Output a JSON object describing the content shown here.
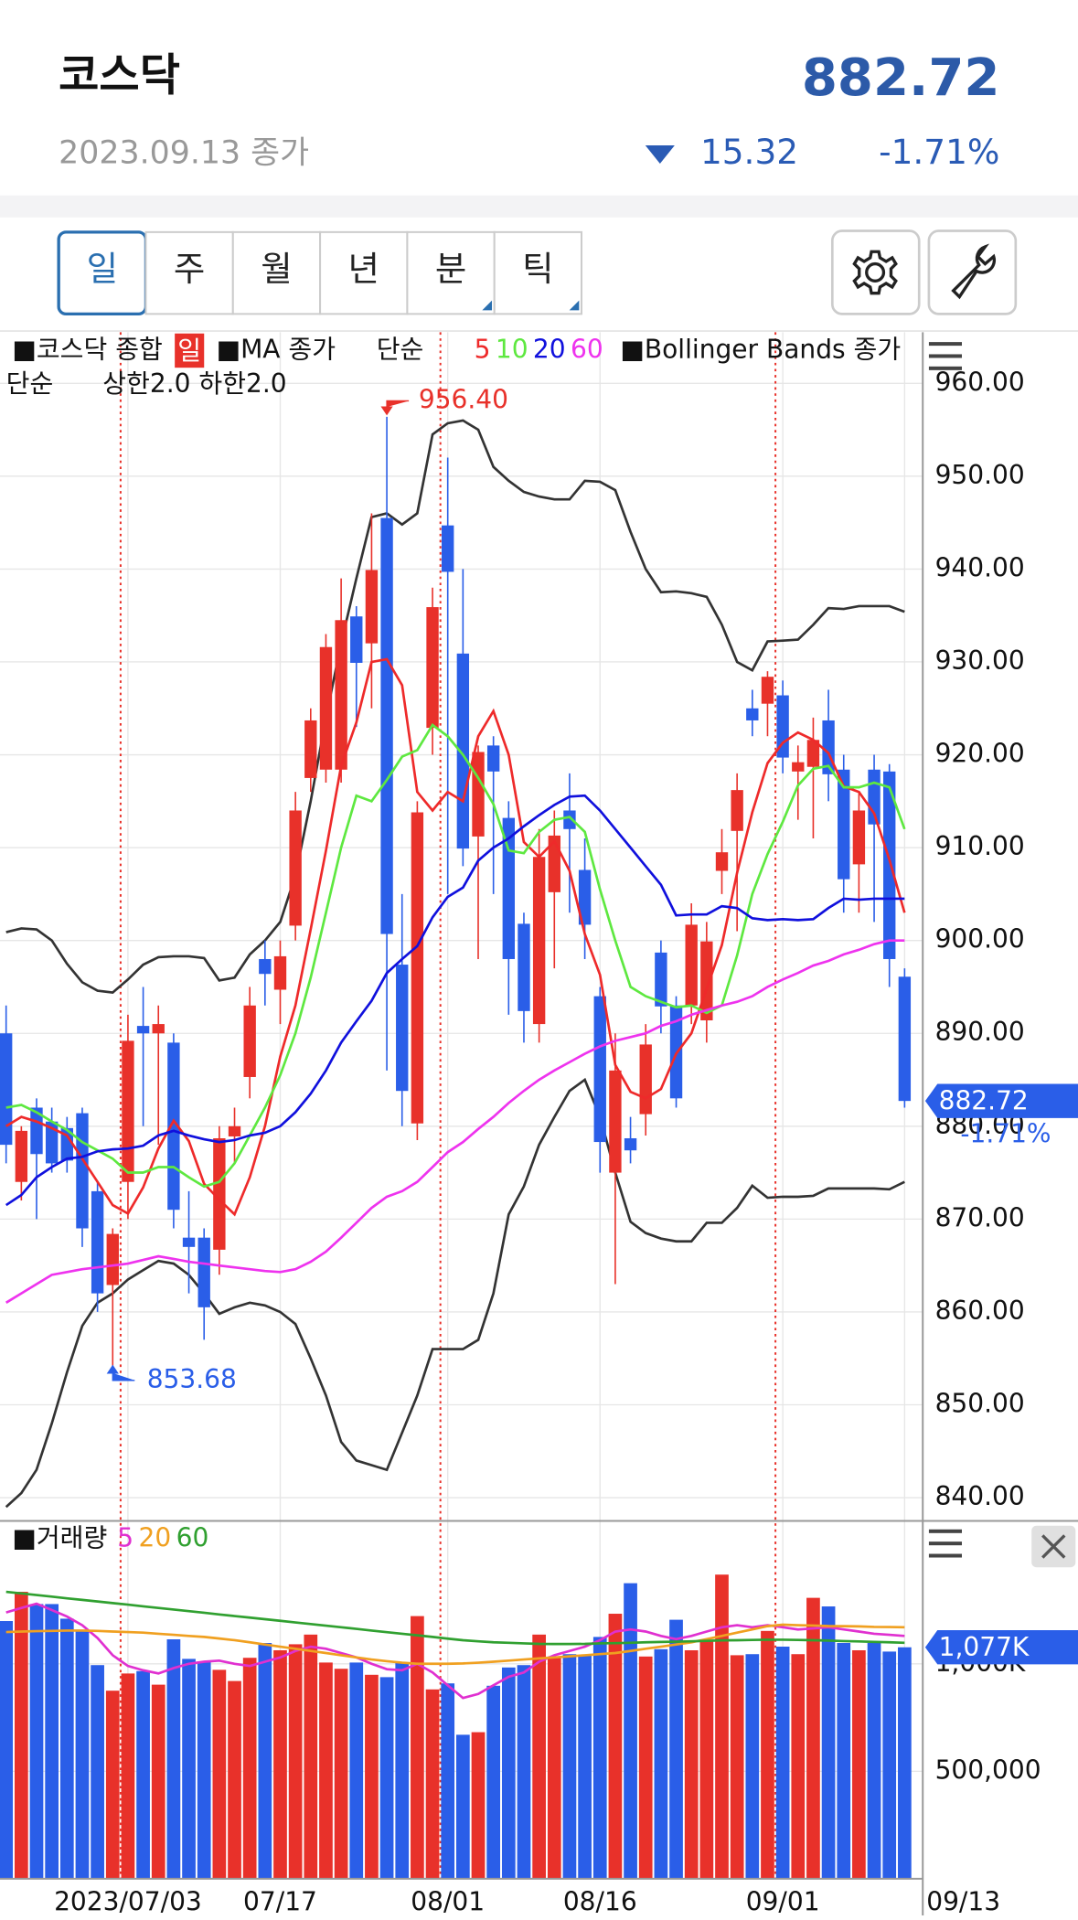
{
  "header": {
    "title": "코스닥",
    "price": "882.72",
    "date": "2023.09.13 종가",
    "change": "15.32",
    "change_pct": "-1.71%"
  },
  "tabs": [
    "일",
    "주",
    "월",
    "년",
    "분",
    "틱"
  ],
  "chart_data": [
    {
      "type": "candlestick",
      "legend": {
        "main": "■코스닥 종합",
        "period": "일",
        "ma": "■MA 종가",
        "ma_type": "단순",
        "bb": "■Bollinger Bands 종가",
        "bb_type": "단순",
        "bb_params": "상한2.0 하한2.0"
      },
      "up_color": "#e8312a",
      "down_color": "#2a5ee8",
      "categories": [
        null,
        null,
        null,
        null,
        null,
        null,
        null,
        null,
        "2023/07/03",
        null,
        null,
        null,
        null,
        null,
        null,
        null,
        null,
        null,
        "07/17",
        null,
        null,
        null,
        null,
        null,
        null,
        null,
        null,
        null,
        null,
        "08/01",
        null,
        null,
        null,
        null,
        null,
        null,
        null,
        null,
        null,
        "08/16",
        null,
        null,
        null,
        null,
        null,
        null,
        null,
        null,
        null,
        null,
        null,
        "09/01",
        null,
        null,
        null,
        null,
        null,
        null,
        null,
        "09/13"
      ],
      "open": [
        890,
        874,
        882,
        880.5,
        879.8,
        881.4,
        873,
        862.9,
        874,
        890.8,
        890,
        889,
        868,
        868,
        866.7,
        878.9,
        885.3,
        898,
        894.7,
        901.6,
        917.5,
        918.4,
        918.4,
        934.9,
        932,
        945.5,
        897.4,
        880.3,
        922.9,
        944.7,
        930.9,
        911.2,
        921,
        913.2,
        901.8,
        891,
        905.2,
        914,
        907.6,
        894,
        875,
        878.7,
        881.3,
        898.7,
        893,
        893,
        891.4,
        907.5,
        911.8,
        925,
        925.5,
        926.4,
        918.2,
        918.7,
        923.7,
        918.4,
        908.2,
        918.4,
        918.2,
        896.1
      ],
      "high": [
        893,
        880,
        883,
        882,
        881,
        882,
        874,
        869,
        892,
        895,
        893,
        890,
        873,
        869,
        880,
        882,
        895,
        900,
        900,
        916,
        925,
        933,
        939,
        936,
        946,
        956.4,
        905,
        915,
        938,
        952,
        940,
        921,
        922,
        915,
        903,
        912,
        914,
        918,
        911,
        895,
        890,
        881,
        891,
        900,
        894,
        904,
        902,
        912,
        918,
        927,
        929,
        928,
        921,
        924,
        927,
        920,
        916,
        920,
        919,
        897
      ],
      "low": [
        876,
        872,
        870,
        875,
        875,
        867,
        860,
        853.68,
        870,
        880,
        878,
        869,
        862,
        857,
        864,
        876,
        883,
        893,
        891,
        900,
        916,
        917,
        917,
        923,
        925,
        886,
        880,
        878.5,
        920,
        905,
        908,
        898,
        905,
        892,
        889,
        889,
        897,
        903,
        898,
        875,
        863,
        876,
        879,
        890,
        882,
        891,
        889,
        905,
        901,
        922,
        922,
        918,
        913,
        911,
        915,
        903,
        903,
        902,
        895,
        882
      ],
      "close": [
        878,
        879.5,
        877,
        876,
        876.3,
        869,
        862,
        868.4,
        889.2,
        890,
        891,
        871,
        867,
        860.5,
        878.7,
        880,
        893,
        896.4,
        898.3,
        914,
        923.7,
        931.6,
        934.5,
        929.9,
        939.9,
        900.7,
        883.8,
        913.8,
        935.9,
        939.7,
        909.9,
        920.3,
        918.2,
        898,
        892.4,
        909,
        911.3,
        912,
        901.7,
        878.3,
        886,
        877.4,
        888.8,
        892.9,
        883,
        901.7,
        899.9,
        909.5,
        916.2,
        923.7,
        928.4,
        919.7,
        919.2,
        921.6,
        917.9,
        906.6,
        914,
        912.5,
        898,
        882.72
      ],
      "series": [
        {
          "name": "5",
          "color": "#ee2a2a",
          "values": [
            880,
            881,
            880.5,
            879.8,
            879,
            876.5,
            874,
            871.5,
            870.6,
            873.4,
            877.6,
            880.6,
            878.4,
            873.8,
            872.1,
            870.5,
            874.5,
            880,
            887.5,
            893,
            901.2,
            909.7,
            918.8,
            923.5,
            930,
            930.3,
            927.5,
            916,
            914,
            916,
            915,
            922,
            924.7,
            920,
            910.6,
            909,
            910.7,
            907.5,
            900.7,
            896.3,
            886.6,
            883.7,
            883,
            884,
            887.8,
            890,
            894.8,
            899.5,
            907.3,
            913.8,
            919.1,
            921.3,
            922.4,
            921.6,
            920.2,
            916.6,
            916,
            913.7,
            908.7,
            903
          ]
        },
        {
          "name": "10",
          "color": "#5ee840",
          "values": [
            882,
            882.3,
            881.5,
            880.5,
            879.6,
            878.3,
            877.4,
            876.5,
            875,
            875,
            875.6,
            875.6,
            874.5,
            873.5,
            874,
            876,
            879,
            882,
            885.5,
            890,
            896,
            903,
            910,
            915.6,
            915,
            917.3,
            919.8,
            920.5,
            923.2,
            922,
            920,
            917.5,
            914.7,
            909.7,
            909.4,
            911.7,
            913,
            913.3,
            911.7,
            905.5,
            900,
            895,
            894,
            893.4,
            892.8,
            893,
            892.2,
            893,
            898.4,
            905,
            909.3,
            912.8,
            916.7,
            918.5,
            918.8,
            916.5,
            916.5,
            917,
            916.5,
            912
          ]
        },
        {
          "name": "20",
          "color": "#1010dd",
          "values": [
            871.5,
            872.6,
            874.5,
            875.6,
            876.5,
            876.7,
            877.3,
            877.5,
            877.6,
            877.9,
            879,
            879.5,
            879,
            878.6,
            878.3,
            878.5,
            879,
            879.3,
            880,
            881.5,
            883.5,
            886,
            889,
            891.3,
            893.5,
            896.5,
            898,
            899.4,
            902.5,
            904.7,
            905.7,
            908.6,
            910,
            911,
            912.3,
            913.5,
            914.6,
            915.5,
            915.6,
            914,
            912,
            910,
            908,
            906,
            902.7,
            902.8,
            902.8,
            903.7,
            903.5,
            902.4,
            902.2,
            902.3,
            902.2,
            902.3,
            903.5,
            904.5,
            904.4,
            904.5,
            904.5,
            904.5
          ]
        },
        {
          "name": "60",
          "color": "#ee33ee",
          "values": [
            861,
            862,
            863,
            864,
            864.3,
            864.6,
            864.8,
            865,
            865.2,
            865.6,
            866,
            865.7,
            865.4,
            865.2,
            865,
            864.8,
            864.6,
            864.4,
            864.3,
            864.6,
            865.4,
            866.5,
            868,
            869.6,
            871.2,
            872.4,
            873,
            874,
            875.6,
            877.2,
            878.3,
            879.7,
            881,
            882.5,
            883.8,
            885,
            886,
            886.9,
            887.8,
            888.6,
            889.2,
            889.6,
            890,
            890.8,
            891.3,
            892,
            892.5,
            893,
            893.4,
            894,
            895,
            895.8,
            896.5,
            897.3,
            897.8,
            898.5,
            899,
            899.6,
            900,
            900
          ]
        }
      ],
      "bands": [
        {
          "color": "#333333",
          "values": [
            900.9,
            901.3,
            901.2,
            900,
            897.5,
            895.5,
            894.6,
            894.4,
            895.8,
            897.4,
            898.2,
            898.3,
            898.3,
            898.1,
            895.7,
            896,
            898.5,
            900,
            902,
            907,
            915,
            924,
            932,
            939,
            945.6,
            946,
            944.8,
            946,
            954.5,
            955.7,
            956,
            955,
            951,
            949.5,
            948.3,
            947.8,
            947.5,
            947.5,
            949.5,
            949.4,
            948.5,
            944,
            940,
            937.5,
            937.6,
            937.4,
            937,
            934,
            930,
            929.1,
            932.2,
            932.3,
            932.4,
            934,
            935.8,
            935.7,
            936,
            936,
            936,
            935.4
          ]
        },
        {
          "color": "#333333",
          "values": [
            839,
            840.5,
            843,
            848,
            853.5,
            858.5,
            861,
            862,
            863.5,
            864.5,
            865.5,
            865.2,
            864,
            862,
            859.8,
            860.5,
            861,
            860.7,
            860,
            858.7,
            855,
            851,
            846,
            844,
            843.5,
            843,
            847,
            851,
            856,
            856,
            856,
            857,
            862,
            870.5,
            873.5,
            878,
            881,
            883.8,
            885,
            881,
            875,
            869.7,
            868.5,
            867.9,
            867.6,
            867.6,
            869.6,
            869.6,
            871.2,
            873.6,
            872.3,
            872.4,
            872.4,
            872.5,
            873.3,
            873.3,
            873.3,
            873.3,
            873.2,
            874
          ]
        }
      ],
      "max_label": "956.40",
      "min_label": "853.68",
      "last_label": "882.72",
      "last_change": "-1.71%",
      "ylim": [
        837.5,
        965.5
      ],
      "yticks": [
        {
          "value": 960,
          "label": "960.00"
        },
        {
          "value": 950,
          "label": "950.00"
        },
        {
          "value": 940,
          "label": "940.00"
        },
        {
          "value": 930,
          "label": "930.00"
        },
        {
          "value": 920,
          "label": "920.00"
        },
        {
          "value": 910,
          "label": "910.00"
        },
        {
          "value": 900,
          "label": "900.00"
        },
        {
          "value": 890,
          "label": "890.00"
        },
        {
          "value": 880,
          "label": "880.00"
        },
        {
          "value": 870,
          "label": "870.00"
        },
        {
          "value": 860,
          "label": "860.00"
        },
        {
          "value": 850,
          "label": "850.00"
        },
        {
          "value": 840,
          "label": "840.00"
        }
      ],
      "grid": true
    },
    {
      "type": "bar",
      "legend": "■거래량",
      "values": [
        1199000,
        1335000,
        1278000,
        1278000,
        1210000,
        1159000,
        994000,
        875000,
        955000,
        966000,
        903000,
        1114000,
        1023000,
        1011000,
        972000,
        920000,
        1028000,
        1097000,
        1063000,
        1091000,
        1136000,
        1006000,
        977000,
        1006000,
        949000,
        938000,
        1006000,
        1222000,
        881000,
        909000,
        670000,
        682000,
        898000,
        983000,
        994000,
        1136000,
        1034000,
        1045000,
        1040000,
        1125000,
        1233000,
        1375000,
        1034000,
        1068000,
        1205000,
        1063000,
        1108000,
        1415000,
        1040000,
        1045000,
        1153000,
        1080000,
        1045000,
        1307000,
        1267000,
        1097000,
        1063000,
        1097000,
        1057000,
        1077000
      ],
      "series": [
        {
          "name": "5",
          "color": "#e030d0",
          "values": [
            1239000,
            1260000,
            1280000,
            1250000,
            1220000,
            1180000,
            1120000,
            1040000,
            990000,
            970000,
            955000,
            980000,
            1000000,
            1010000,
            1015000,
            1000000,
            990000,
            1010000,
            1030000,
            1060000,
            1080000,
            1070000,
            1050000,
            1030000,
            1000000,
            975000,
            970000,
            1000000,
            960000,
            900000,
            841000,
            860000,
            900000,
            940000,
            960000,
            1010000,
            1040000,
            1060000,
            1080000,
            1110000,
            1150000,
            1160000,
            1150000,
            1130000,
            1115000,
            1130000,
            1150000,
            1170000,
            1180000,
            1170000,
            1180000,
            1170000,
            1160000,
            1165000,
            1170000,
            1160000,
            1150000,
            1140000,
            1135000,
            1130000
          ]
        },
        {
          "name": "20",
          "color": "#f0a020",
          "values": [
            1148000,
            1150000,
            1152000,
            1153000,
            1155000,
            1155000,
            1153000,
            1150000,
            1148000,
            1145000,
            1140000,
            1135000,
            1130000,
            1125000,
            1118000,
            1110000,
            1100000,
            1090000,
            1080000,
            1070000,
            1060000,
            1050000,
            1040000,
            1030000,
            1020000,
            1012000,
            1005000,
            1000000,
            1000000,
            1000000,
            1002000,
            1005000,
            1010000,
            1015000,
            1020000,
            1025000,
            1030000,
            1035000,
            1040000,
            1045000,
            1050000,
            1060000,
            1070000,
            1080000,
            1090000,
            1100000,
            1115000,
            1130000,
            1145000,
            1160000,
            1175000,
            1182000,
            1180000,
            1178000,
            1176000,
            1175000,
            1174000,
            1172000,
            1171000,
            1170000
          ]
        },
        {
          "name": "60",
          "color": "#30a030",
          "values": [
            1335000,
            1327500,
            1320000,
            1312500,
            1305000,
            1297500,
            1290000,
            1282500,
            1275000,
            1267500,
            1260000,
            1252500,
            1245000,
            1237500,
            1230000,
            1222500,
            1215000,
            1207500,
            1200000,
            1192500,
            1185000,
            1177500,
            1170000,
            1162500,
            1155000,
            1147500,
            1140000,
            1132500,
            1125000,
            1117500,
            1110000,
            1105000,
            1100000,
            1098000,
            1095000,
            1093000,
            1092000,
            1092000,
            1093000,
            1095000,
            1096000,
            1098000,
            1100000,
            1102000,
            1103000,
            1105000,
            1107000,
            1109000,
            1110000,
            1111000,
            1112000,
            1112000,
            1111000,
            1110000,
            1108000,
            1106000,
            1104000,
            1102000,
            1100000,
            1098000
          ]
        }
      ],
      "last_label": "1,077K",
      "ylim": [
        0,
        1648000
      ],
      "yticks": [
        {
          "value": 500000,
          "label": "500,000"
        },
        {
          "value": 1000000,
          "label": "1,000K"
        }
      ],
      "grid": true
    }
  ]
}
